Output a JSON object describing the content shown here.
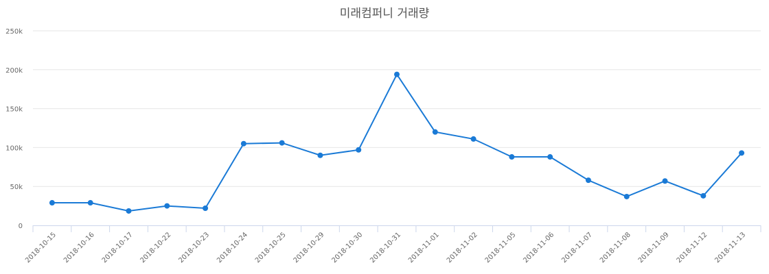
{
  "chart_data": {
    "type": "line",
    "title": "미래컴퍼니 거래량",
    "xlabel": "",
    "ylabel": "",
    "ylim": [
      0,
      250000
    ],
    "y_ticks": [
      "0",
      "50k",
      "100k",
      "150k",
      "200k",
      "250k"
    ],
    "grid": true,
    "legend": null,
    "categories": [
      "2018-10-15",
      "2018-10-16",
      "2018-10-17",
      "2018-10-22",
      "2018-10-23",
      "2018-10-24",
      "2018-10-25",
      "2018-10-29",
      "2018-10-30",
      "2018-10-31",
      "2018-11-01",
      "2018-11-02",
      "2018-11-05",
      "2018-11-06",
      "2018-11-07",
      "2018-11-08",
      "2018-11-09",
      "2018-11-12",
      "2018-11-13"
    ],
    "series": [
      {
        "name": "거래량",
        "color": "#1a7ad6",
        "values": [
          29000,
          29000,
          18500,
          25000,
          22000,
          105000,
          106000,
          90000,
          97000,
          194000,
          120000,
          111000,
          88000,
          88000,
          58000,
          37000,
          57000,
          38000,
          93000
        ]
      }
    ]
  }
}
